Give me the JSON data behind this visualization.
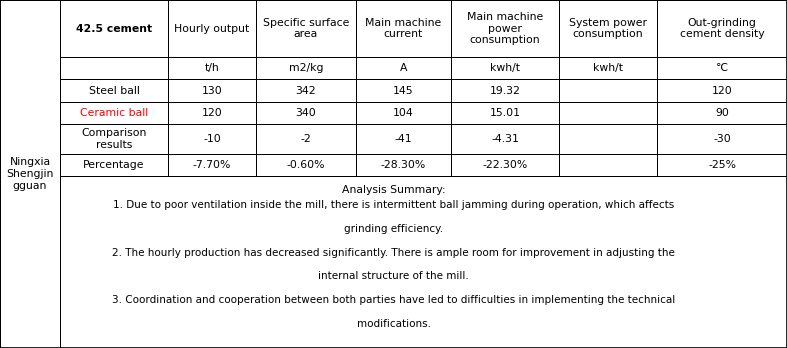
{
  "left_label": "Ningxia\nShengjin\ngguan",
  "col_headers": [
    "42.5 cement",
    "Hourly output",
    "Specific surface\narea",
    "Main machine\ncurrent",
    "Main machine\npower\nconsumption",
    "System power\nconsumption",
    "Out-grinding\ncement density"
  ],
  "units_row": [
    "",
    "t/h",
    "m2/kg",
    "A",
    "kwh/t",
    "kwh/t",
    "℃"
  ],
  "data_rows": [
    {
      "label": "Steel ball",
      "label_color": "#000000",
      "values": [
        "130",
        "342",
        "145",
        "19.32",
        "",
        "120"
      ]
    },
    {
      "label": "Ceramic ball",
      "label_color": "#FF0000",
      "values": [
        "120",
        "340",
        "104",
        "15.01",
        "",
        "90"
      ]
    },
    {
      "label": "Comparison\nresults",
      "label_color": "#000000",
      "values": [
        "-10",
        "-2",
        "-41",
        "-4.31",
        "",
        "-30"
      ]
    },
    {
      "label": "Percentage",
      "label_color": "#000000",
      "values": [
        "-7.70%",
        "-0.60%",
        "-28.30%",
        "-22.30%",
        "",
        "-25%"
      ]
    }
  ],
  "analysis_title": "Analysis Summary:",
  "analysis_lines": [
    "1. Due to poor ventilation inside the mill, there is intermittent ball jamming during operation, which affects",
    "grinding efficiency.",
    "2. The hourly production has decreased significantly. There is ample room for improvement in adjusting the",
    "internal structure of the mill.",
    "3. Coordination and cooperation between both parties have led to difficulties in implementing the technical",
    "modifications."
  ],
  "analysis_indents": [
    false,
    true,
    false,
    true,
    false,
    true
  ],
  "bg_color": "#FFFFFF",
  "font_size": 7.8,
  "header_bold_col": 0
}
